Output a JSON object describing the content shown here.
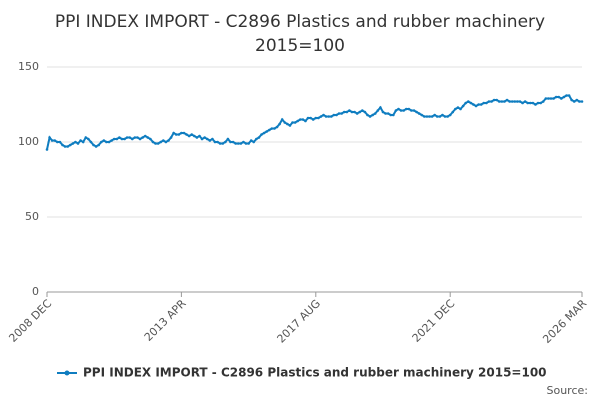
{
  "chart_data": {
    "type": "line",
    "title": "PPI INDEX IMPORT - C2896 Plastics and rubber machinery",
    "subtitle": "2015=100",
    "source_label": "Source:",
    "categories": [
      "2008 DEC",
      null,
      null,
      null,
      null,
      null,
      null,
      null,
      null,
      null,
      null,
      null,
      null,
      null,
      null,
      null,
      null,
      null,
      null,
      null,
      null,
      null,
      null,
      null,
      null,
      null,
      null,
      null,
      null,
      null,
      null,
      null,
      null,
      null,
      null,
      null,
      null,
      null,
      null,
      null,
      null,
      null,
      null,
      null,
      null,
      null,
      null,
      null,
      null,
      null,
      null,
      null,
      "2013 APR",
      null,
      null,
      null,
      null,
      null,
      null,
      null,
      null,
      null,
      null,
      null,
      null,
      null,
      null,
      null,
      null,
      null,
      null,
      null,
      null,
      null,
      null,
      null,
      null,
      null,
      null,
      null,
      null,
      null,
      null,
      null,
      null,
      null,
      null,
      null,
      null,
      null,
      null,
      null,
      null,
      null,
      null,
      null,
      null,
      null,
      null,
      null,
      null,
      null,
      null,
      null,
      "2017 AUG",
      null,
      null,
      null,
      null,
      null,
      null,
      null,
      null,
      null,
      null,
      null,
      null,
      null,
      null,
      null,
      null,
      null,
      null,
      null,
      null,
      null,
      null,
      null,
      null,
      null,
      null,
      null,
      null,
      null,
      null,
      null,
      null,
      null,
      null,
      null,
      null,
      null,
      null,
      null,
      null,
      null,
      null,
      null,
      null,
      null,
      null,
      null,
      null,
      null,
      null,
      null,
      "2021 DEC",
      null,
      null,
      null,
      null,
      null,
      null,
      null,
      null,
      null,
      null,
      null,
      null,
      null,
      null,
      null,
      null,
      null,
      null,
      null,
      null,
      null,
      null,
      null,
      null,
      null,
      null,
      null,
      null,
      null,
      null,
      null,
      null,
      null,
      null,
      null,
      null,
      null,
      null,
      null,
      null,
      null,
      null,
      null,
      null,
      null,
      null,
      null,
      null,
      null,
      null,
      "2026 MAR"
    ],
    "series": [
      {
        "name": "PPI INDEX IMPORT - C2896 Plastics and rubber machinery 2015=100",
        "color": "#0f7dc0",
        "values": [
          95,
          103,
          101,
          101,
          100,
          100,
          98,
          97,
          97,
          98,
          99,
          100,
          99,
          101,
          100,
          103,
          102,
          100,
          98,
          97,
          98,
          100,
          101,
          100,
          100,
          101,
          102,
          102,
          103,
          102,
          102,
          103,
          103,
          102,
          103,
          103,
          102,
          103,
          104,
          103,
          102,
          100,
          99,
          99,
          100,
          101,
          100,
          101,
          103,
          106,
          105,
          105,
          106,
          106,
          105,
          104,
          105,
          104,
          103,
          104,
          102,
          103,
          102,
          101,
          102,
          100,
          100,
          99,
          99,
          100,
          102,
          100,
          100,
          99,
          99,
          99,
          100,
          99,
          99,
          101,
          100,
          102,
          103,
          105,
          106,
          107,
          108,
          109,
          109,
          110,
          112,
          115,
          113,
          112,
          111,
          113,
          113,
          114,
          115,
          115,
          114,
          116,
          116,
          115,
          116,
          116,
          117,
          118,
          117,
          117,
          117,
          118,
          118,
          119,
          119,
          120,
          120,
          121,
          120,
          120,
          119,
          120,
          121,
          120,
          118,
          117,
          118,
          119,
          121,
          123,
          120,
          119,
          119,
          118,
          118,
          121,
          122,
          121,
          121,
          122,
          122,
          121,
          121,
          120,
          119,
          118,
          117,
          117,
          117,
          117,
          118,
          117,
          117,
          118,
          117,
          117,
          118,
          120,
          122,
          123,
          122,
          124,
          126,
          127,
          126,
          125,
          124,
          125,
          125,
          126,
          126,
          127,
          127,
          128,
          128,
          127,
          127,
          127,
          128,
          127,
          127,
          127,
          127,
          127,
          126,
          127,
          126,
          126,
          126,
          125,
          126,
          126,
          127,
          129,
          129,
          129,
          129,
          130,
          130,
          129,
          130,
          131,
          131,
          128,
          127,
          128,
          127,
          127
        ]
      }
    ],
    "ylim": [
      0,
      150
    ],
    "yticks": [
      0,
      50,
      100,
      150
    ],
    "grid": true
  }
}
